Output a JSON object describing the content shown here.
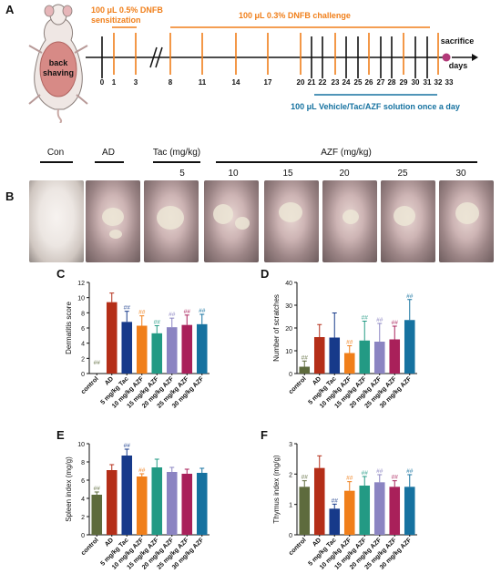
{
  "panel_labels": {
    "a": "A",
    "b": "B",
    "c": "C",
    "d": "D",
    "e": "E",
    "f": "F"
  },
  "timeline": {
    "mouse_label_line1": "back",
    "mouse_label_line2": "shaving",
    "sensitization_line1": "100 μL 0.5% DNFB",
    "sensitization_line2": "sensitization",
    "challenge": "100 μL 0.3% DNFB challenge",
    "treatment": "100 μL Vehicle/Tac/AZF solution once a day",
    "sacrifice": "sacrifice",
    "days": "days",
    "ticks": [
      "0",
      "1",
      "3",
      "8",
      "11",
      "14",
      "17",
      "20",
      "21",
      "22",
      "23",
      "24",
      "25",
      "26",
      "27",
      "28",
      "29",
      "30",
      "31",
      "32",
      "33"
    ],
    "colors": {
      "orange": "#F07F1A",
      "teal": "#1672A0",
      "sacrifice_dot": "#B23A79"
    }
  },
  "photo_groups": {
    "con": "Con",
    "ad": "AD",
    "tac": "Tac (mg/kg)",
    "tac_dose": "5",
    "azf": "AZF (mg/kg)",
    "azf_doses": [
      "10",
      "15",
      "20",
      "25",
      "30"
    ]
  },
  "chart_data": [
    {
      "type": "bar",
      "panel": "C",
      "ylabel": "Dermatitis score",
      "ylim": [
        0,
        12
      ],
      "yticks": [
        "0",
        "2",
        "4",
        "6",
        "8",
        "10",
        "12"
      ],
      "categories": [
        "control",
        "AD",
        "5 mg/kg Tac",
        "10 mg/kg AZF",
        "15 mg/kg AZF",
        "20 mg/kg AZF",
        "25 mg/kg AZF",
        "30 mg/kg AZF"
      ],
      "values": [
        0,
        9.4,
        6.8,
        6.3,
        5.3,
        6.1,
        6.4,
        6.5
      ],
      "errors": [
        0,
        1.2,
        1.4,
        1.3,
        1.0,
        1.2,
        1.3,
        1.3
      ],
      "annotations": [
        "##",
        "",
        "##",
        "##",
        "##",
        "##",
        "##",
        "##"
      ]
    },
    {
      "type": "bar",
      "panel": "D",
      "ylabel": "Number of scratches",
      "ylim": [
        0,
        40
      ],
      "yticks": [
        "0",
        "10",
        "20",
        "30",
        "40"
      ],
      "categories": [
        "control",
        "AD",
        "5 mg/kg Tac",
        "10 mg/kg AZF",
        "15 mg/kg AZF",
        "20 mg/kg AZF",
        "25 mg/kg AZF",
        "30 mg/kg AZF"
      ],
      "values": [
        3,
        16,
        15.8,
        9,
        14.5,
        14,
        15,
        23.5
      ],
      "errors": [
        2.5,
        5.5,
        10.8,
        3.2,
        8.5,
        8,
        5.8,
        9
      ],
      "annotations": [
        "##",
        "",
        "",
        "##",
        "##",
        "##",
        "##",
        "##"
      ]
    },
    {
      "type": "bar",
      "panel": "E",
      "ylabel": "Spleen index (mg/g)",
      "ylim": [
        0,
        10
      ],
      "yticks": [
        "0",
        "2",
        "4",
        "6",
        "8",
        "10"
      ],
      "categories": [
        "control",
        "AD",
        "5 mg/kg Tac",
        "10 mg/kg AZF",
        "15 mg/kg AZF",
        "20 mg/kg AZF",
        "25 mg/kg AZF",
        "30 mg/kg AZF"
      ],
      "values": [
        4.4,
        7.1,
        8.7,
        6.4,
        7.4,
        6.9,
        6.7,
        6.8
      ],
      "errors": [
        0.3,
        0.6,
        0.7,
        0.3,
        0.9,
        0.5,
        0.5,
        0.5
      ],
      "annotations": [
        "##",
        "",
        "##",
        "##",
        "",
        "",
        "",
        ""
      ]
    },
    {
      "type": "bar",
      "panel": "F",
      "ylabel": "Thymus index (mg/g)",
      "ylim": [
        0,
        3
      ],
      "yticks": [
        "0",
        "1",
        "2",
        "3"
      ],
      "categories": [
        "control",
        "AD",
        "5 mg/kg Tac",
        "10 mg/kg AZF",
        "15 mg/kg AZF",
        "20 mg/kg AZF",
        "25 mg/kg AZF",
        "30 mg/kg AZF"
      ],
      "values": [
        1.58,
        2.2,
        0.86,
        1.45,
        1.62,
        1.73,
        1.58,
        1.58
      ],
      "errors": [
        0.2,
        0.4,
        0.15,
        0.3,
        0.3,
        0.25,
        0.2,
        0.4
      ],
      "annotations": [
        "##",
        "",
        "##",
        "##",
        "##",
        "##",
        "##",
        "##"
      ]
    }
  ],
  "bar_colors": [
    "#5E6B3D",
    "#B42E18",
    "#173A8A",
    "#F07F1A",
    "#239A84",
    "#8B84C2",
    "#A9205A",
    "#1672A0"
  ]
}
